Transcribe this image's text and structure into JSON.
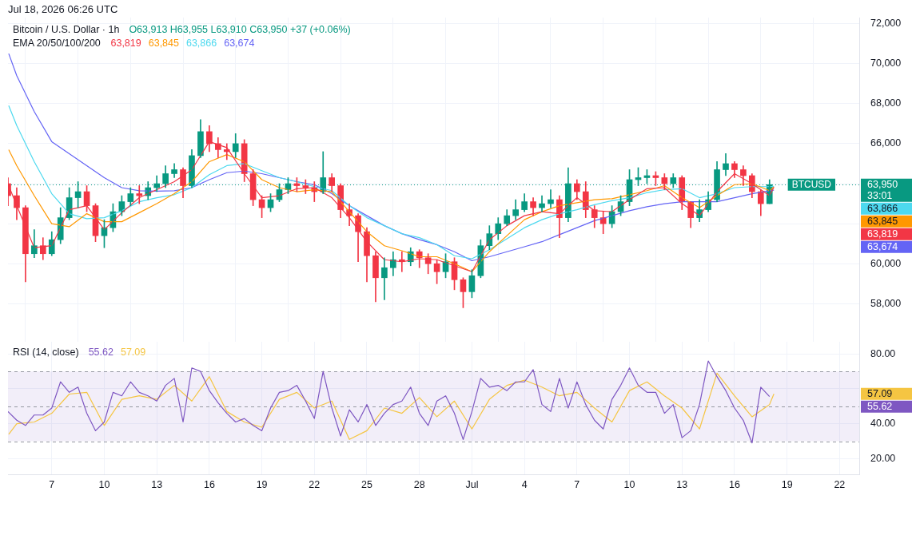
{
  "chart_data": [
    {
      "type": "candlestick",
      "title": "Bitcoin / U.S. Dollar · 1h",
      "annotations": [
        "Jul 18, 2026 06:26 UTC",
        "O63,913 H63,955 L63,910 C63,950 +37 (+0.06%)",
        "EMA 20/50/100/200",
        "63,819",
        "63,845",
        "63,866",
        "63,674",
        "63,950",
        "33:01"
      ],
      "x": [
        "2026-06-04T12:00",
        "2026-06-05T00:00",
        "2026-06-05T12:00",
        "2026-06-06T00:00",
        "2026-06-06T12:00",
        "2026-06-07T00:00",
        "2026-06-07T12:00",
        "2026-06-08T00:00",
        "2026-06-08T12:00",
        "2026-06-09T00:00",
        "2026-06-09T12:00",
        "2026-06-10T00:00",
        "2026-06-10T12:00",
        "2026-06-11T00:00",
        "2026-06-11T12:00",
        "2026-06-12T00:00",
        "2026-06-12T12:00",
        "2026-06-13T00:00",
        "2026-06-13T12:00",
        "2026-06-14T00:00",
        "2026-06-14T12:00",
        "2026-06-15T00:00",
        "2026-06-15T12:00",
        "2026-06-16T00:00",
        "2026-06-16T12:00",
        "2026-06-17T00:00",
        "2026-06-17T12:00",
        "2026-06-18T00:00",
        "2026-06-18T12:00",
        "2026-06-19T00:00",
        "2026-06-19T12:00",
        "2026-06-20T00:00",
        "2026-06-20T12:00",
        "2026-06-21T00:00",
        "2026-06-21T12:00",
        "2026-06-22T00:00",
        "2026-06-22T12:00",
        "2026-06-23T00:00",
        "2026-06-23T12:00",
        "2026-06-24T00:00",
        "2026-06-24T12:00",
        "2026-06-25T00:00",
        "2026-06-25T12:00",
        "2026-06-26T00:00",
        "2026-06-26T12:00",
        "2026-06-27T00:00",
        "2026-06-27T12:00",
        "2026-06-28T00:00",
        "2026-06-28T12:00",
        "2026-06-29T00:00",
        "2026-06-29T12:00",
        "2026-06-30T00:00",
        "2026-06-30T12:00",
        "2026-07-01T00:00",
        "2026-07-01T12:00",
        "2026-07-02T00:00",
        "2026-07-02T12:00",
        "2026-07-03T00:00",
        "2026-07-03T12:00",
        "2026-07-04T00:00",
        "2026-07-04T12:00",
        "2026-07-05T00:00",
        "2026-07-05T12:00",
        "2026-07-06T00:00",
        "2026-07-06T12:00",
        "2026-07-07T00:00",
        "2026-07-07T12:00",
        "2026-07-08T00:00",
        "2026-07-08T12:00",
        "2026-07-09T00:00",
        "2026-07-09T12:00",
        "2026-07-10T00:00",
        "2026-07-10T12:00",
        "2026-07-11T00:00",
        "2026-07-11T12:00",
        "2026-07-12T00:00",
        "2026-07-12T12:00",
        "2026-07-13T00:00",
        "2026-07-13T12:00",
        "2026-07-14T00:00",
        "2026-07-14T12:00",
        "2026-07-15T00:00",
        "2026-07-15T12:00",
        "2026-07-16T00:00",
        "2026-07-16T12:00",
        "2026-07-17T00:00",
        "2026-07-17T12:00",
        "2026-07-18T00:00"
      ],
      "ohlc": [
        [
          64000,
          64300,
          62900,
          63400
        ],
        [
          63400,
          63800,
          62200,
          62800
        ],
        [
          62800,
          62900,
          59100,
          60500
        ],
        [
          60500,
          61700,
          60300,
          60900
        ],
        [
          60900,
          61300,
          60200,
          60500
        ],
        [
          60500,
          61600,
          60400,
          61200
        ],
        [
          61200,
          62800,
          61000,
          62300
        ],
        [
          62300,
          63800,
          62200,
          63300
        ],
        [
          63300,
          64100,
          62800,
          63600
        ],
        [
          63600,
          63900,
          62600,
          62900
        ],
        [
          62900,
          63000,
          61100,
          61400
        ],
        [
          61400,
          62200,
          60800,
          61800
        ],
        [
          61800,
          63000,
          61600,
          62600
        ],
        [
          62600,
          63400,
          62400,
          63100
        ],
        [
          63100,
          63800,
          62900,
          63500
        ],
        [
          63500,
          63900,
          63000,
          63400
        ],
        [
          63400,
          64100,
          63200,
          63800
        ],
        [
          63800,
          64400,
          63600,
          64000
        ],
        [
          64000,
          64900,
          63800,
          64500
        ],
        [
          64500,
          65000,
          64300,
          64700
        ],
        [
          64700,
          64800,
          63300,
          63900
        ],
        [
          63900,
          65700,
          63800,
          65400
        ],
        [
          65400,
          67200,
          65300,
          66600
        ],
        [
          66600,
          66900,
          65600,
          66000
        ],
        [
          66000,
          66300,
          65300,
          65700
        ],
        [
          65700,
          66000,
          65200,
          65600
        ],
        [
          65600,
          66500,
          65300,
          66000
        ],
        [
          66000,
          66200,
          64100,
          64500
        ],
        [
          64500,
          64700,
          62900,
          63200
        ],
        [
          63200,
          63400,
          62300,
          62800
        ],
        [
          62800,
          63500,
          62600,
          63200
        ],
        [
          63200,
          64000,
          63100,
          63700
        ],
        [
          63700,
          64300,
          63500,
          64000
        ],
        [
          64000,
          64300,
          63600,
          63900
        ],
        [
          63900,
          64200,
          63500,
          63800
        ],
        [
          63800,
          64100,
          63100,
          63600
        ],
        [
          63600,
          65600,
          63500,
          64300
        ],
        [
          64300,
          64500,
          63600,
          63900
        ],
        [
          63900,
          64000,
          62300,
          62700
        ],
        [
          62700,
          63000,
          61900,
          62400
        ],
        [
          62400,
          62500,
          60100,
          61600
        ],
        [
          61600,
          61800,
          59100,
          60400
        ],
        [
          60400,
          60600,
          58100,
          59300
        ],
        [
          59300,
          60300,
          58200,
          59800
        ],
        [
          59800,
          60600,
          59400,
          60200
        ],
        [
          60200,
          60600,
          59600,
          60100
        ],
        [
          60100,
          60800,
          59900,
          60600
        ],
        [
          60600,
          60700,
          59800,
          60300
        ],
        [
          60300,
          60500,
          59500,
          60000
        ],
        [
          60000,
          60200,
          59000,
          59600
        ],
        [
          59600,
          60500,
          59300,
          60100
        ],
        [
          60100,
          60300,
          58700,
          59200
        ],
        [
          59200,
          59300,
          57800,
          58600
        ],
        [
          58600,
          59700,
          58300,
          59400
        ],
        [
          59400,
          61200,
          59300,
          60900
        ],
        [
          60900,
          61900,
          60700,
          61500
        ],
        [
          61500,
          62300,
          61200,
          62000
        ],
        [
          62000,
          62700,
          61900,
          62400
        ],
        [
          62400,
          63200,
          62200,
          62700
        ],
        [
          62700,
          63500,
          62600,
          63100
        ],
        [
          63100,
          63300,
          62400,
          62800
        ],
        [
          62800,
          63400,
          62600,
          63000
        ],
        [
          63000,
          63700,
          62800,
          63200
        ],
        [
          63200,
          63400,
          61300,
          62300
        ],
        [
          62300,
          64800,
          62100,
          64000
        ],
        [
          64000,
          64200,
          63200,
          63600
        ],
        [
          63600,
          64100,
          62300,
          62700
        ],
        [
          62700,
          62900,
          61800,
          62300
        ],
        [
          62300,
          62600,
          61500,
          62000
        ],
        [
          62000,
          62900,
          61800,
          62600
        ],
        [
          62600,
          63400,
          62400,
          63100
        ],
        [
          63100,
          64700,
          62900,
          64200
        ],
        [
          64200,
          64800,
          63900,
          64300
        ],
        [
          64300,
          64700,
          64000,
          64400
        ],
        [
          64400,
          64600,
          63900,
          64300
        ],
        [
          64300,
          64500,
          63700,
          64000
        ],
        [
          64000,
          64500,
          63800,
          64300
        ],
        [
          64300,
          64400,
          62700,
          63100
        ],
        [
          63100,
          63100,
          61800,
          62300
        ],
        [
          62300,
          63200,
          62100,
          62700
        ],
        [
          62700,
          63600,
          62600,
          63200
        ],
        [
          63200,
          65100,
          63100,
          64700
        ],
        [
          64700,
          65500,
          64400,
          65000
        ],
        [
          65000,
          65100,
          64300,
          64700
        ],
        [
          64700,
          64900,
          63900,
          64400
        ],
        [
          64400,
          64500,
          63300,
          63600
        ],
        [
          63600,
          63700,
          62400,
          63000
        ],
        [
          63000,
          64200,
          63000,
          63950
        ]
      ],
      "series": [
        {
          "type": "line",
          "color": "#f23645",
          "x": [
            "2026-06-04T13:00",
            "2026-06-05",
            "2026-06-06",
            "2026-06-07",
            "2026-06-08",
            "2026-06-09",
            "2026-06-10",
            "2026-06-11",
            "2026-06-12",
            "2026-06-13",
            "2026-06-14",
            "2026-06-15",
            "2026-06-16",
            "2026-06-17",
            "2026-06-18",
            "2026-06-19",
            "2026-06-20",
            "2026-06-21",
            "2026-06-22",
            "2026-06-23",
            "2026-06-24",
            "2026-06-25",
            "2026-06-26",
            "2026-06-27",
            "2026-06-28",
            "2026-06-29",
            "2026-06-30",
            "2026-07-01",
            "2026-07-02",
            "2026-07-03",
            "2026-07-04",
            "2026-07-05",
            "2026-07-06",
            "2026-07-07",
            "2026-07-08",
            "2026-07-09",
            "2026-07-10",
            "2026-07-11",
            "2026-07-12",
            "2026-07-13",
            "2026-07-14",
            "2026-07-15",
            "2026-07-16",
            "2026-07-17",
            "2026-07-18",
            "2026-07-18T06:00"
          ],
          "values": [
            63900,
            62900,
            60800,
            60900,
            62700,
            62900,
            61700,
            62550,
            63300,
            63700,
            64100,
            64700,
            66100,
            65800,
            64500,
            63300,
            63400,
            63750,
            63800,
            63300,
            62300,
            61100,
            60200,
            60100,
            60250,
            60200,
            59900,
            59600,
            61200,
            61900,
            62400,
            62600,
            62500,
            63300,
            62650,
            62600,
            63200,
            63750,
            63800,
            63000,
            62400,
            63600,
            64500,
            64000,
            63400,
            63819
          ]
        },
        {
          "type": "line",
          "color": "#ff9800",
          "x": [
            "2026-06-04T13:00",
            "2026-06-05",
            "2026-06-06",
            "2026-06-07",
            "2026-06-08",
            "2026-06-09",
            "2026-06-10",
            "2026-06-11",
            "2026-06-12",
            "2026-06-13",
            "2026-06-14",
            "2026-06-15",
            "2026-06-16",
            "2026-06-17",
            "2026-06-18",
            "2026-06-19",
            "2026-06-20",
            "2026-06-21",
            "2026-06-22",
            "2026-06-23",
            "2026-06-24",
            "2026-06-25",
            "2026-06-26",
            "2026-06-27",
            "2026-06-28",
            "2026-06-29",
            "2026-06-30",
            "2026-07-01",
            "2026-07-02",
            "2026-07-03",
            "2026-07-04",
            "2026-07-05",
            "2026-07-06",
            "2026-07-07",
            "2026-07-08",
            "2026-07-09",
            "2026-07-10",
            "2026-07-11",
            "2026-07-12",
            "2026-07-13",
            "2026-07-14",
            "2026-07-15",
            "2026-07-16",
            "2026-07-17",
            "2026-07-18",
            "2026-07-18T06:00"
          ],
          "values": [
            65700,
            64900,
            63400,
            62000,
            61850,
            62500,
            62100,
            62100,
            62550,
            63000,
            63500,
            64100,
            65100,
            65450,
            65100,
            64200,
            63800,
            63600,
            63700,
            63600,
            62600,
            61600,
            60900,
            60650,
            60350,
            60350,
            60000,
            59600,
            60600,
            61400,
            62200,
            62600,
            62900,
            63050,
            63200,
            63250,
            63450,
            63650,
            63900,
            63300,
            62800,
            63400,
            63950,
            64000,
            63650,
            63845
          ]
        },
        {
          "type": "line",
          "color": "#4dd9ef",
          "x": [
            "2026-06-04T13:00",
            "2026-06-05",
            "2026-06-06",
            "2026-06-07",
            "2026-06-08",
            "2026-06-09",
            "2026-06-10",
            "2026-06-11",
            "2026-06-12",
            "2026-06-13",
            "2026-06-14",
            "2026-06-15",
            "2026-06-16",
            "2026-06-17",
            "2026-06-18",
            "2026-06-19",
            "2026-06-20",
            "2026-06-21",
            "2026-06-22",
            "2026-06-23",
            "2026-06-24",
            "2026-06-25",
            "2026-06-26",
            "2026-06-27",
            "2026-06-28",
            "2026-06-29",
            "2026-06-30",
            "2026-07-01",
            "2026-07-02",
            "2026-07-03",
            "2026-07-04",
            "2026-07-05",
            "2026-07-06",
            "2026-07-07",
            "2026-07-08",
            "2026-07-09",
            "2026-07-10",
            "2026-07-11",
            "2026-07-12",
            "2026-07-13",
            "2026-07-14",
            "2026-07-15",
            "2026-07-16",
            "2026-07-17",
            "2026-07-18",
            "2026-07-18T06:00"
          ],
          "values": [
            67900,
            66900,
            65100,
            63500,
            62500,
            62250,
            62300,
            62650,
            63100,
            63300,
            63450,
            63800,
            64450,
            64900,
            65000,
            64650,
            64300,
            64100,
            63850,
            63650,
            62900,
            62300,
            61900,
            61500,
            61300,
            60950,
            60400,
            60250,
            60700,
            61250,
            61800,
            62200,
            62500,
            62700,
            62950,
            63150,
            63300,
            63550,
            63700,
            63750,
            63300,
            63500,
            63800,
            63850,
            63850,
            63866
          ]
        },
        {
          "type": "line",
          "color": "#6464f5",
          "x": [
            "2026-06-04T13:00",
            "2026-06-05",
            "2026-06-06",
            "2026-06-07",
            "2026-06-08",
            "2026-06-09",
            "2026-06-10",
            "2026-06-11",
            "2026-06-12",
            "2026-06-13",
            "2026-06-14",
            "2026-06-15",
            "2026-06-16",
            "2026-06-17",
            "2026-06-18",
            "2026-06-19",
            "2026-06-20",
            "2026-06-21",
            "2026-06-22",
            "2026-06-23",
            "2026-06-24",
            "2026-06-25",
            "2026-06-26",
            "2026-06-27",
            "2026-06-28",
            "2026-06-29",
            "2026-06-30",
            "2026-07-01",
            "2026-07-02",
            "2026-07-03",
            "2026-07-04",
            "2026-07-05",
            "2026-07-06",
            "2026-07-07",
            "2026-07-08",
            "2026-07-09",
            "2026-07-10",
            "2026-07-11",
            "2026-07-12",
            "2026-07-13",
            "2026-07-14",
            "2026-07-15",
            "2026-07-16",
            "2026-07-17",
            "2026-07-18",
            "2026-07-18T06:00"
          ],
          "values": [
            70500,
            69400,
            67600,
            66100,
            65500,
            64900,
            64300,
            63800,
            63650,
            63630,
            63650,
            63800,
            64200,
            64550,
            64630,
            64500,
            64300,
            64100,
            63950,
            63500,
            62900,
            62400,
            61900,
            61500,
            61200,
            60950,
            60600,
            60150,
            60350,
            60600,
            60850,
            61100,
            61450,
            61800,
            62150,
            62400,
            62650,
            62850,
            63000,
            63100,
            63100,
            63100,
            63300,
            63500,
            63650,
            63674
          ]
        }
      ],
      "xlim": [
        "2026-06-04T12:00",
        "2026-07-23T03:00"
      ],
      "xticks": [
        {
          "value": "2026-06-07",
          "label": null
        },
        {
          "value": "2026-06-10",
          "label": null
        },
        {
          "value": "2026-06-13",
          "label": null
        },
        {
          "value": "2026-06-16",
          "label": null
        },
        {
          "value": "2026-06-19",
          "label": null
        },
        {
          "value": "2026-06-22",
          "label": null
        },
        {
          "value": "2026-06-25",
          "label": null
        },
        {
          "value": "2026-06-28",
          "label": null
        },
        {
          "value": "2026-07-01",
          "label": null
        },
        {
          "value": "2026-07-04",
          "label": null
        },
        {
          "value": "2026-07-07",
          "label": null
        },
        {
          "value": "2026-07-10",
          "label": null
        },
        {
          "value": "2026-07-13",
          "label": null
        },
        {
          "value": "2026-07-16",
          "label": null
        },
        {
          "value": "2026-07-19",
          "label": null
        },
        {
          "value": "2026-07-22",
          "label": null
        }
      ],
      "ylim": [
        56100,
        72300
      ],
      "yticks": [
        {
          "value": 58000,
          "label": "58,000"
        },
        {
          "value": 60000,
          "label": "60,000"
        },
        {
          "value": 62000,
          "label": null
        },
        {
          "value": 64000,
          "label": null
        },
        {
          "value": 66000,
          "label": "66,000"
        },
        {
          "value": 68000,
          "label": "68,000"
        },
        {
          "value": 70000,
          "label": "70,000"
        },
        {
          "value": 72000,
          "label": "72,000"
        }
      ],
      "ref_lines": [
        {
          "axis": "y",
          "value": 63950,
          "label": "BTCUSD",
          "color": "#089981",
          "line_style": "dotted"
        }
      ],
      "grid": true,
      "tick_labels": "y",
      "marker": "none"
    },
    {
      "type": "line",
      "title": "RSI (14, close)",
      "annotations": [
        "55.62",
        "57.09"
      ],
      "series": [
        {
          "color": "#7e57c2",
          "x": [
            "2026-06-04T12:00",
            "2026-06-05T00:00",
            "2026-06-05T12:00",
            "2026-06-06T00:00",
            "2026-06-06T12:00",
            "2026-06-07T00:00",
            "2026-06-07T12:00",
            "2026-06-08T00:00",
            "2026-06-08T12:00",
            "2026-06-09T00:00",
            "2026-06-09T12:00",
            "2026-06-10T00:00",
            "2026-06-10T12:00",
            "2026-06-11T00:00",
            "2026-06-11T12:00",
            "2026-06-12T00:00",
            "2026-06-12T12:00",
            "2026-06-13T00:00",
            "2026-06-13T12:00",
            "2026-06-14T00:00",
            "2026-06-14T12:00",
            "2026-06-15T00:00",
            "2026-06-15T12:00",
            "2026-06-16T00:00",
            "2026-06-16T12:00",
            "2026-06-17T00:00",
            "2026-06-17T12:00",
            "2026-06-18T00:00",
            "2026-06-18T12:00",
            "2026-06-19T00:00",
            "2026-06-19T12:00",
            "2026-06-20T00:00",
            "2026-06-20T12:00",
            "2026-06-21T00:00",
            "2026-06-21T12:00",
            "2026-06-22T00:00",
            "2026-06-22T12:00",
            "2026-06-23T00:00",
            "2026-06-23T12:00",
            "2026-06-24T00:00",
            "2026-06-24T12:00",
            "2026-06-25T00:00",
            "2026-06-25T12:00",
            "2026-06-26T00:00",
            "2026-06-26T12:00",
            "2026-06-27T00:00",
            "2026-06-27T12:00",
            "2026-06-28T00:00",
            "2026-06-28T12:00",
            "2026-06-29T00:00",
            "2026-06-29T12:00",
            "2026-06-30T00:00",
            "2026-06-30T12:00",
            "2026-07-01T00:00",
            "2026-07-01T12:00",
            "2026-07-02T00:00",
            "2026-07-02T12:00",
            "2026-07-03T00:00",
            "2026-07-03T12:00",
            "2026-07-04T00:00",
            "2026-07-04T12:00",
            "2026-07-05T00:00",
            "2026-07-05T12:00",
            "2026-07-06T00:00",
            "2026-07-06T12:00",
            "2026-07-07T00:00",
            "2026-07-07T12:00",
            "2026-07-08T00:00",
            "2026-07-08T12:00",
            "2026-07-09T00:00",
            "2026-07-09T12:00",
            "2026-07-10T00:00",
            "2026-07-10T12:00",
            "2026-07-11T00:00",
            "2026-07-11T12:00",
            "2026-07-12T00:00",
            "2026-07-12T12:00",
            "2026-07-13T00:00",
            "2026-07-13T12:00",
            "2026-07-14T00:00",
            "2026-07-14T12:00",
            "2026-07-15T00:00",
            "2026-07-15T12:00",
            "2026-07-16T00:00",
            "2026-07-16T12:00",
            "2026-07-17T00:00",
            "2026-07-17T12:00",
            "2026-07-18T00:00"
          ],
          "values": [
            47,
            42,
            39,
            45,
            45,
            49,
            64,
            58,
            61,
            46,
            36,
            41,
            58,
            56,
            64,
            58,
            56,
            53,
            62,
            66,
            41,
            72,
            70,
            59,
            52,
            46,
            41,
            43,
            39,
            36,
            49,
            58,
            59,
            62,
            53,
            43,
            70,
            49,
            33,
            48,
            41,
            51,
            39,
            46,
            51,
            53,
            61,
            46,
            39,
            53,
            56,
            46,
            31,
            47,
            66,
            61,
            62,
            59,
            64,
            64,
            71,
            51,
            47,
            66,
            49,
            64,
            51,
            42,
            37,
            54,
            62,
            72,
            62,
            58,
            58,
            46,
            51,
            32,
            36,
            51,
            76,
            67,
            59,
            49,
            42,
            29,
            61,
            55.62
          ]
        },
        {
          "color": "#f5c542",
          "x": [
            "2026-06-04T13:00",
            "2026-06-05",
            "2026-06-06",
            "2026-06-07",
            "2026-06-08",
            "2026-06-09",
            "2026-06-10",
            "2026-06-11",
            "2026-06-12",
            "2026-06-13",
            "2026-06-14",
            "2026-06-15",
            "2026-06-16",
            "2026-06-17",
            "2026-06-18",
            "2026-06-19",
            "2026-06-20",
            "2026-06-21",
            "2026-06-22",
            "2026-06-23",
            "2026-06-24",
            "2026-06-25",
            "2026-06-26",
            "2026-06-27",
            "2026-06-28",
            "2026-06-29",
            "2026-06-30",
            "2026-07-01",
            "2026-07-02",
            "2026-07-03",
            "2026-07-04",
            "2026-07-05",
            "2026-07-06",
            "2026-07-07",
            "2026-07-08",
            "2026-07-09",
            "2026-07-10",
            "2026-07-11",
            "2026-07-12",
            "2026-07-13",
            "2026-07-14",
            "2026-07-15",
            "2026-07-16",
            "2026-07-17",
            "2026-07-18",
            "2026-07-18T06:00"
          ],
          "values": [
            34,
            40,
            41,
            46,
            57,
            58,
            39,
            54,
            56,
            54,
            62,
            53,
            67,
            47,
            41,
            38,
            54,
            58,
            49,
            53,
            31,
            36,
            49,
            46,
            55,
            44,
            53,
            37,
            54,
            62,
            65,
            61,
            56,
            58,
            49,
            41,
            59,
            64,
            56,
            49,
            37,
            69,
            56,
            44,
            51,
            57.09
          ]
        }
      ],
      "xlim": [
        "2026-06-04T12:00",
        "2026-07-23T03:00"
      ],
      "xticks": [
        {
          "value": "2026-06-07",
          "label": "7"
        },
        {
          "value": "2026-06-10",
          "label": "10"
        },
        {
          "value": "2026-06-13",
          "label": "13"
        },
        {
          "value": "2026-06-16",
          "label": "16"
        },
        {
          "value": "2026-06-19",
          "label": "19"
        },
        {
          "value": "2026-06-22",
          "label": "22"
        },
        {
          "value": "2026-06-25",
          "label": "25"
        },
        {
          "value": "2026-06-28",
          "label": "28"
        },
        {
          "value": "2026-07-01",
          "label": "Jul"
        },
        {
          "value": "2026-07-04",
          "label": "4"
        },
        {
          "value": "2026-07-07",
          "label": "7"
        },
        {
          "value": "2026-07-10",
          "label": "10"
        },
        {
          "value": "2026-07-13",
          "label": "13"
        },
        {
          "value": "2026-07-16",
          "label": "16"
        },
        {
          "value": "2026-07-19",
          "label": "19"
        },
        {
          "value": "2026-07-22",
          "label": "22"
        }
      ],
      "ylim": [
        11,
        87
      ],
      "yticks": [
        {
          "value": 20,
          "label": "20.00"
        },
        {
          "value": 40,
          "label": "40.00"
        },
        {
          "value": 60,
          "label": null
        },
        {
          "value": 80,
          "label": "80.00"
        }
      ],
      "bands": [
        {
          "axis": "y",
          "from": 30,
          "to": 70,
          "color": "#7e57c2"
        }
      ],
      "ref_lines": [
        {
          "axis": "y",
          "value": 30,
          "color": "#9598a1",
          "line_style": "dashed"
        },
        {
          "axis": "y",
          "value": 50,
          "color": "#9598a1",
          "line_style": "dashed"
        },
        {
          "axis": "y",
          "value": 70,
          "color": "#9598a1",
          "line_style": "dashed"
        }
      ],
      "grid": true,
      "marker": "none"
    }
  ]
}
